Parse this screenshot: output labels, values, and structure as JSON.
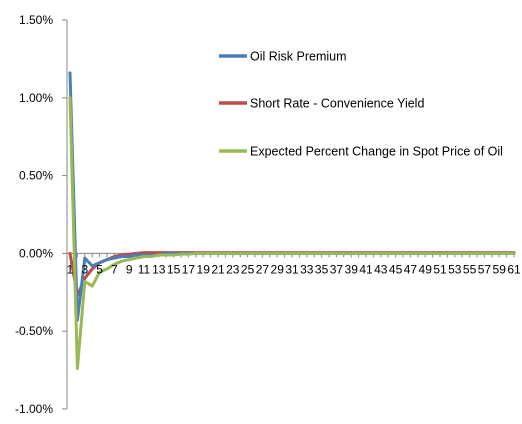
{
  "chart_data": {
    "type": "line",
    "title": "",
    "xlabel": "",
    "ylabel": "",
    "ylim": [
      -0.01,
      0.015
    ],
    "y_tick_values": [
      0.015,
      0.01,
      0.005,
      0.0,
      -0.005,
      -0.01
    ],
    "y_tick_labels": [
      "1.50%",
      "1.00%",
      "0.50%",
      "0.00%",
      "-0.50%",
      "-1.00%"
    ],
    "x": [
      1,
      2,
      3,
      4,
      5,
      6,
      7,
      8,
      9,
      10,
      11,
      12,
      13,
      14,
      15,
      16,
      17,
      18,
      19,
      20,
      21,
      22,
      23,
      24,
      25,
      26,
      27,
      28,
      29,
      30,
      31,
      32,
      33,
      34,
      35,
      36,
      37,
      38,
      39,
      40,
      41,
      42,
      43,
      44,
      45,
      46,
      47,
      48,
      49,
      50,
      51,
      52,
      53,
      54,
      55,
      56,
      57,
      58,
      59,
      60,
      61
    ],
    "x_tick_values": [
      1,
      3,
      5,
      7,
      9,
      11,
      13,
      15,
      17,
      19,
      21,
      23,
      25,
      27,
      29,
      31,
      33,
      35,
      37,
      39,
      41,
      43,
      45,
      47,
      49,
      51,
      53,
      55,
      57,
      59,
      61
    ],
    "x_tick_labels": [
      "1",
      "3",
      "5",
      "7",
      "9",
      "11",
      "13",
      "15",
      "17",
      "19",
      "21",
      "23",
      "25",
      "27",
      "29",
      "31",
      "33",
      "35",
      "37",
      "39",
      "41",
      "43",
      "45",
      "47",
      "49",
      "51",
      "53",
      "55",
      "57",
      "59",
      "61"
    ],
    "grid": false,
    "legend_position": "inside-top-right",
    "series": [
      {
        "name": "Oil Risk Premium",
        "color": "#4a7ebb",
        "values": [
          0.0116,
          -0.0043,
          -0.0003,
          -0.0008,
          -0.0006,
          -0.0004,
          -0.0003,
          -0.0002,
          -0.0002,
          -0.0001,
          -0.0001,
          -0.0001,
          -0.0001,
          0,
          0,
          0,
          0,
          0,
          0,
          0,
          0,
          0,
          0,
          0,
          0,
          0,
          0,
          0,
          0,
          0,
          0,
          0,
          0,
          0,
          0,
          0,
          0,
          0,
          0,
          0,
          0,
          0,
          0,
          0,
          0,
          0,
          0,
          0,
          0,
          0,
          0,
          0,
          0,
          0,
          0,
          0,
          0,
          0,
          0,
          0,
          0
        ]
      },
      {
        "name": "Short Rate - Convenience Yield",
        "color": "#be4b48",
        "values": [
          0.0,
          -0.0027,
          -0.0016,
          -0.001,
          -0.0006,
          -0.0004,
          -0.0002,
          -0.0001,
          -5e-05,
          0,
          5e-05,
          5e-05,
          5e-05,
          5e-05,
          5e-05,
          5e-05,
          5e-05,
          5e-05,
          5e-05,
          5e-05,
          5e-05,
          5e-05,
          5e-05,
          5e-05,
          5e-05,
          5e-05,
          5e-05,
          5e-05,
          5e-05,
          5e-05,
          5e-05,
          5e-05,
          5e-05,
          5e-05,
          5e-05,
          5e-05,
          5e-05,
          5e-05,
          5e-05,
          5e-05,
          5e-05,
          5e-05,
          5e-05,
          5e-05,
          5e-05,
          5e-05,
          5e-05,
          5e-05,
          5e-05,
          5e-05,
          5e-05,
          5e-05,
          5e-05,
          5e-05,
          5e-05,
          5e-05,
          5e-05,
          5e-05,
          5e-05,
          5e-05,
          5e-05
        ]
      },
      {
        "name": "Expected Percent Change in Spot Price of Oil",
        "color": "#98b954",
        "values": [
          0.01,
          -0.0074,
          -0.0018,
          -0.0021,
          -0.0012,
          -0.001,
          -0.0007,
          -0.0005,
          -0.0004,
          -0.0003,
          -0.0002,
          -0.0002,
          -0.0001,
          -0.0001,
          -0.0001,
          -5e-05,
          -5e-05,
          0,
          0,
          0,
          0,
          0,
          0,
          0,
          0,
          0,
          0,
          0,
          0,
          0,
          0,
          0,
          0,
          0,
          0,
          0,
          0,
          0,
          0,
          0,
          0,
          0,
          0,
          0,
          0,
          0,
          0,
          0,
          0,
          0,
          0,
          0,
          0,
          0,
          0,
          0,
          0,
          0,
          0,
          0,
          0
        ]
      }
    ]
  }
}
